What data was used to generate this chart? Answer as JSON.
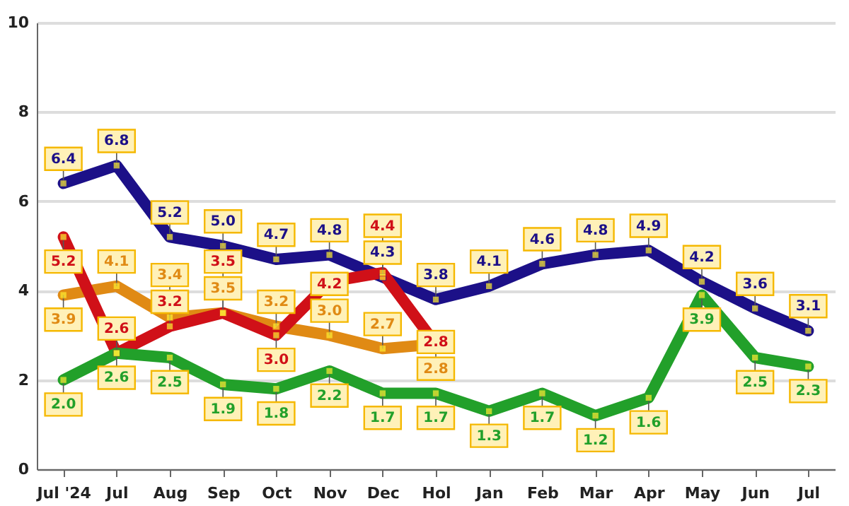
{
  "chart_data": {
    "type": "line",
    "categories": [
      "Jul '24",
      "Jul",
      "Aug",
      "Sep",
      "Oct",
      "Nov",
      "Dec",
      "Hol",
      "Jan",
      "Feb",
      "Mar",
      "Apr",
      "May",
      "Jun",
      "Jul"
    ],
    "series": [
      {
        "color": "#1c1088",
        "values": [
          6.4,
          6.8,
          5.2,
          5.0,
          4.7,
          4.8,
          4.3,
          3.8,
          4.1,
          4.6,
          4.8,
          4.9,
          4.2,
          3.6,
          3.1
        ],
        "value_labels": [
          "6.4",
          "6.8",
          "5.2",
          "5.0",
          "4.7",
          "4.8",
          "4.3",
          "3.8",
          "4.1",
          "4.6",
          "4.8",
          "4.9",
          "4.2",
          "3.6",
          "3.1"
        ]
      },
      {
        "color": "#e08a14",
        "values": [
          3.9,
          4.1,
          3.4,
          3.5,
          3.2,
          3.0,
          2.7,
          2.8,
          null,
          null,
          null,
          null,
          null,
          null,
          null
        ],
        "value_labels": [
          "3.9",
          "4.1",
          "3.4",
          "3.5",
          "3.2",
          "3.0",
          "2.7",
          "2.8",
          null,
          null,
          null,
          null,
          null,
          null,
          null
        ]
      },
      {
        "color": "#d01018",
        "values": [
          5.2,
          2.6,
          3.2,
          3.5,
          3.0,
          4.2,
          4.4,
          2.8,
          null,
          null,
          null,
          null,
          null,
          null,
          null
        ],
        "value_labels": [
          "5.2",
          "2.6",
          "3.2",
          "3.5",
          "3.0",
          "4.2",
          "4.4",
          "2.8",
          null,
          null,
          null,
          null,
          null,
          null,
          null
        ]
      },
      {
        "color": "#22a02a",
        "values": [
          2.0,
          2.6,
          2.5,
          1.9,
          1.8,
          2.2,
          1.7,
          1.7,
          1.3,
          1.7,
          1.2,
          1.6,
          3.9,
          2.5,
          2.3
        ],
        "value_labels": [
          "2.0",
          "2.6",
          "2.5",
          "1.9",
          "1.8",
          "2.2",
          "1.7",
          "1.7",
          "1.3",
          "1.7",
          "1.2",
          "1.6",
          "3.9",
          "2.5",
          "2.3"
        ]
      }
    ],
    "ylim": [
      0,
      10
    ],
    "yticks": [
      0,
      2,
      4,
      6,
      8,
      10
    ],
    "grid": "y",
    "marker": "square"
  }
}
